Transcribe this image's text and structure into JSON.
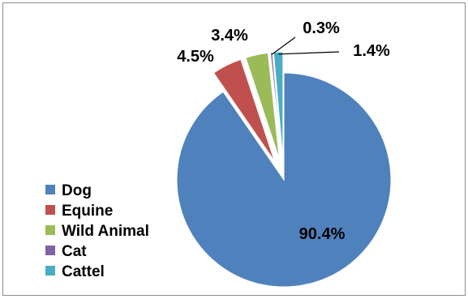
{
  "chart_data": {
    "type": "pie",
    "title": "",
    "exploded": true,
    "start_angle_deg": 0,
    "direction": "clockwise",
    "legend_position": "bottom-left",
    "slices": [
      {
        "label": "Dog",
        "value": 90.4,
        "display": "90.4%",
        "color": "#4F81BD"
      },
      {
        "label": "Equine",
        "value": 4.5,
        "display": "4.5%",
        "color": "#C0504D"
      },
      {
        "label": "Wild Animal",
        "value": 3.4,
        "display": "3.4%",
        "color": "#9BBB59"
      },
      {
        "label": "Cat",
        "value": 0.3,
        "display": "0.3%",
        "color": "#8064A2"
      },
      {
        "label": "Cattel",
        "value": 1.4,
        "display": "1.4%",
        "color": "#4BACC6"
      }
    ]
  }
}
